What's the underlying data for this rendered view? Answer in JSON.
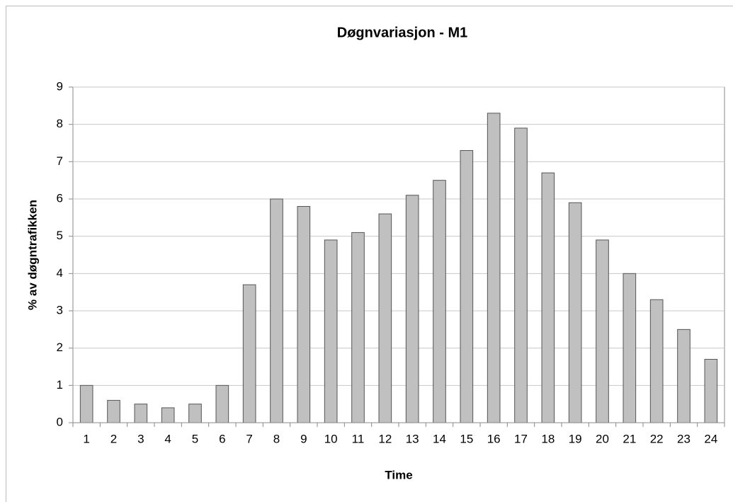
{
  "chart_data": {
    "type": "bar",
    "title": "Døgnvariasjon - M1",
    "x_label": "Time",
    "y_label": "% av døgntrafikken",
    "categories": [
      "1",
      "2",
      "3",
      "4",
      "5",
      "6",
      "7",
      "8",
      "9",
      "10",
      "11",
      "12",
      "13",
      "14",
      "15",
      "16",
      "17",
      "18",
      "19",
      "20",
      "21",
      "22",
      "23",
      "24"
    ],
    "values": [
      1.0,
      0.6,
      0.5,
      0.4,
      0.5,
      1.0,
      3.7,
      6.0,
      5.8,
      4.9,
      5.1,
      5.6,
      6.1,
      6.5,
      7.3,
      8.3,
      7.9,
      6.7,
      5.9,
      4.9,
      4.0,
      3.3,
      2.5,
      1.7
    ],
    "color": "#c0c0c0",
    "ylim": [
      0,
      9
    ],
    "yticks": [
      0,
      1,
      2,
      3,
      4,
      5,
      6,
      7,
      8,
      9
    ],
    "grid": true
  }
}
